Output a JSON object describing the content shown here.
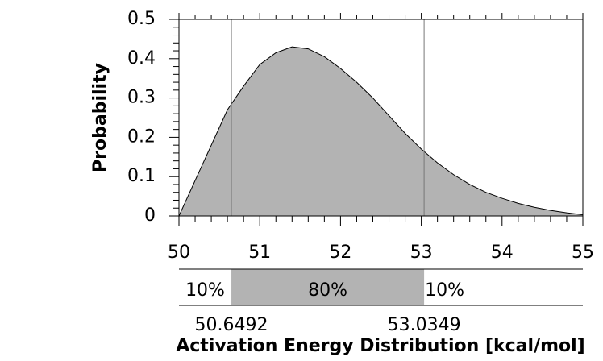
{
  "chart_data": {
    "type": "area",
    "x_label": "Activation Energy Distribution [kcal/mol]",
    "y_label": "Probability",
    "x": [
      50.0,
      50.2,
      50.4,
      50.6,
      50.8,
      51.0,
      51.2,
      51.4,
      51.6,
      51.8,
      52.0,
      52.2,
      52.4,
      52.6,
      52.8,
      53.0,
      53.2,
      53.4,
      53.6,
      53.8,
      54.0,
      54.2,
      54.4,
      54.6,
      54.8,
      55.0
    ],
    "values": [
      0.0,
      0.09,
      0.18,
      0.27,
      0.33,
      0.385,
      0.415,
      0.43,
      0.425,
      0.405,
      0.375,
      0.34,
      0.3,
      0.255,
      0.21,
      0.17,
      0.135,
      0.105,
      0.08,
      0.06,
      0.045,
      0.032,
      0.022,
      0.014,
      0.008,
      0.003
    ],
    "color": "#b3b3b3",
    "xlim": [
      50,
      55
    ],
    "xticks": [
      50,
      51,
      52,
      53,
      54,
      55
    ],
    "ylim": [
      0,
      0.5
    ],
    "yticks": [
      0,
      0.1,
      0.2,
      0.3,
      0.4,
      0.5
    ],
    "markers": [
      50.6492,
      53.0349
    ],
    "bands": {
      "values": [
        10,
        80,
        10
      ],
      "value_labels": [
        "10%",
        "80%",
        "10%"
      ]
    }
  }
}
